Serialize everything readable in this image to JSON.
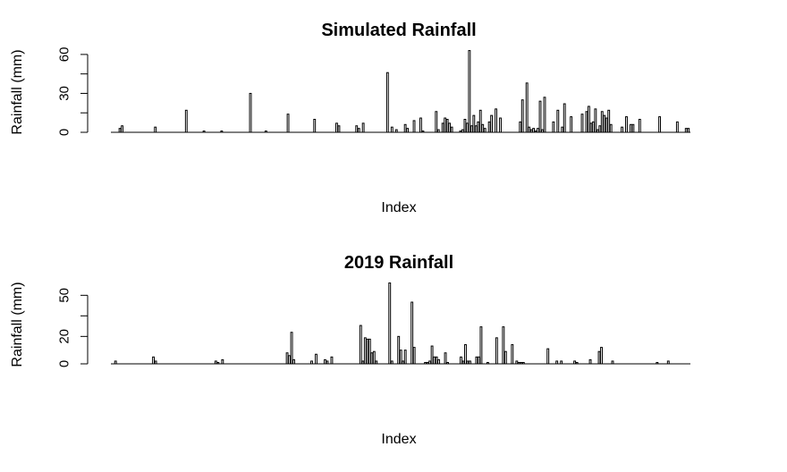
{
  "chart_data": [
    {
      "type": "bar",
      "title": "Simulated Rainfall",
      "xlabel": "Index",
      "ylabel": "Rainfall (mm)",
      "yticks": [
        0,
        30,
        60
      ],
      "ylim": [
        0,
        62
      ],
      "x": [
        4,
        5,
        20,
        34,
        42,
        50,
        63,
        70,
        80,
        92,
        102,
        103,
        111,
        112,
        114,
        125,
        127,
        129,
        133,
        134,
        137,
        140,
        141,
        147,
        148,
        150,
        151,
        152,
        153,
        154,
        158,
        159,
        160,
        161,
        162,
        163,
        164,
        165,
        166,
        167,
        168,
        169,
        171,
        172,
        174,
        176,
        185,
        186,
        188,
        189,
        190,
        191,
        192,
        193,
        194,
        195,
        196,
        200,
        202,
        204,
        205,
        208,
        213,
        215,
        216,
        217,
        218,
        219,
        220,
        221,
        222,
        223,
        224,
        225,
        226,
        231,
        233,
        235,
        236,
        239,
        248,
        256,
        260,
        261
      ],
      "values": [
        3,
        5,
        4,
        17,
        1,
        1,
        30,
        1,
        14,
        10,
        7,
        5,
        5,
        3,
        7,
        46,
        4,
        2,
        6,
        3,
        9,
        11,
        1,
        16,
        2,
        7,
        11,
        10,
        7,
        4,
        1,
        2,
        10,
        7,
        63,
        5,
        13,
        5,
        8,
        17,
        6,
        3,
        8,
        13,
        18,
        11,
        8,
        25,
        38,
        4,
        2,
        3,
        1,
        3,
        24,
        2,
        27,
        8,
        17,
        4,
        22,
        12,
        14,
        16,
        20,
        7,
        8,
        18,
        2,
        5,
        16,
        13,
        11,
        17,
        6,
        4,
        12,
        6,
        6,
        10,
        12,
        8,
        3,
        3
      ],
      "xrange": [
        0,
        262
      ]
    },
    {
      "type": "bar",
      "title": "2019 Rainfall",
      "xlabel": "Index",
      "ylabel": "Rainfall (mm)",
      "yticks": [
        0,
        20,
        50
      ],
      "ylim": [
        0,
        60
      ],
      "x": [
        2,
        19,
        20,
        47,
        48,
        50,
        79,
        80,
        81,
        82,
        90,
        92,
        96,
        97,
        99,
        112,
        113,
        114,
        115,
        116,
        117,
        118,
        119,
        125,
        126,
        129,
        130,
        131,
        132,
        135,
        136,
        141,
        142,
        143,
        144,
        145,
        146,
        147,
        150,
        151,
        157,
        158,
        159,
        160,
        161,
        164,
        165,
        166,
        169,
        173,
        176,
        177,
        180,
        182,
        183,
        184,
        185,
        196,
        200,
        202,
        208,
        209,
        215,
        219,
        220,
        225,
        245,
        250
      ],
      "values": [
        2,
        5,
        2,
        2,
        1,
        3,
        8,
        6,
        23,
        3,
        2,
        7,
        3,
        2,
        5,
        28,
        2,
        19,
        18,
        18,
        8,
        9,
        2,
        59,
        2,
        20,
        10,
        2,
        10,
        45,
        12,
        1,
        1,
        2,
        13,
        5,
        5,
        3,
        8,
        1,
        5,
        2,
        14,
        2,
        2,
        5,
        5,
        27,
        1,
        19,
        27,
        9,
        14,
        2,
        1,
        1,
        1,
        11,
        2,
        2,
        2,
        1,
        3,
        9,
        12,
        2,
        1,
        2
      ],
      "xrange": [
        0,
        260
      ]
    }
  ]
}
